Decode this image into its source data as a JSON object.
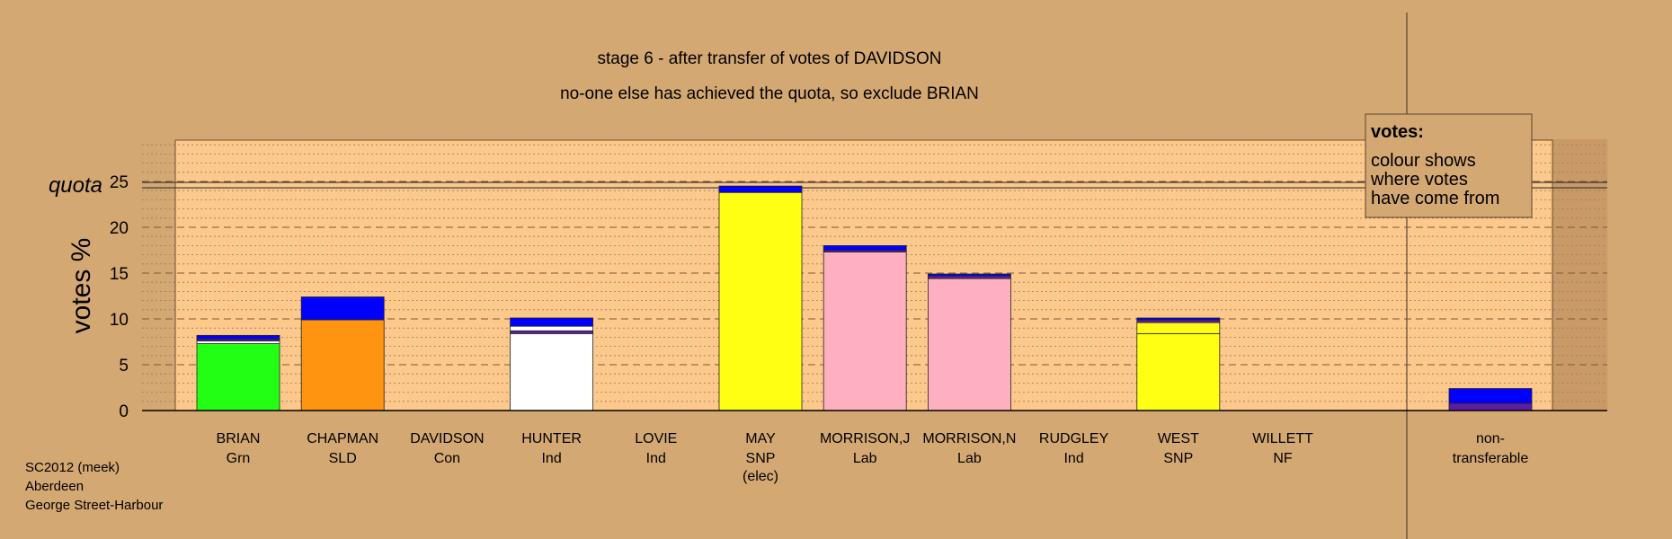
{
  "chart_data": {
    "type": "bar",
    "title": "stage 6 - after transfer of votes of DAVIDSON",
    "subtitle": "no-one else has achieved the quota, so exclude BRIAN",
    "ylabel": "votes %",
    "ylim": [
      0,
      30
    ],
    "yticks": [
      0,
      5,
      10,
      15,
      20,
      25
    ],
    "quota": {
      "label": "quota",
      "value": 24.6
    },
    "legend": {
      "title": "votes:",
      "lines": [
        "colour shows",
        "where votes",
        "have come from"
      ],
      "placement": "top-right"
    },
    "colors": {
      "background": "#d4a872",
      "plot_area": "#fcc88c",
      "transfer": "#0000ff",
      "transfer_dark": "#5b1ea0"
    },
    "candidates": [
      {
        "name": "BRIAN",
        "party": "Grn",
        "note": "",
        "color": "#22ff14",
        "segments": [
          {
            "value": 7.3,
            "color": "#22ff14"
          },
          {
            "value": 0.3,
            "color": "#ffffff"
          },
          {
            "value": 0.2,
            "color": "#5b1ea0"
          },
          {
            "value": 0.4,
            "color": "#0000ff"
          }
        ]
      },
      {
        "name": "CHAPMAN",
        "party": "SLD",
        "note": "",
        "color": "#ff9410",
        "segments": [
          {
            "value": 9.9,
            "color": "#ff9410"
          },
          {
            "value": 2.5,
            "color": "#0000ff"
          }
        ]
      },
      {
        "name": "DAVIDSON",
        "party": "Con",
        "note": "",
        "color": "#0000ff",
        "segments": []
      },
      {
        "name": "HUNTER",
        "party": "Ind",
        "note": "",
        "color": "#ffffff",
        "segments": [
          {
            "value": 8.4,
            "color": "#ffffff"
          },
          {
            "value": 0.3,
            "color": "#5b1ea0"
          },
          {
            "value": 0.5,
            "color": "#ffffff"
          },
          {
            "value": 0.9,
            "color": "#0000ff"
          }
        ]
      },
      {
        "name": "LOVIE",
        "party": "Ind",
        "note": "",
        "color": "#5b1ea0",
        "segments": []
      },
      {
        "name": "MAY",
        "party": "SNP",
        "note": "(elec)",
        "color": "#ffff14",
        "segments": [
          {
            "value": 23.8,
            "color": "#ffff14"
          },
          {
            "value": 0.7,
            "color": "#0000ff"
          }
        ]
      },
      {
        "name": "MORRISON,J",
        "party": "Lab",
        "note": "",
        "color": "#ffb0c0",
        "segments": [
          {
            "value": 17.3,
            "color": "#ffb0c0"
          },
          {
            "value": 0.2,
            "color": "#5b1ea0"
          },
          {
            "value": 0.5,
            "color": "#0000ff"
          }
        ]
      },
      {
        "name": "MORRISON,N",
        "party": "Lab",
        "note": "",
        "color": "#ffb0c0",
        "segments": [
          {
            "value": 14.4,
            "color": "#ffb0c0"
          },
          {
            "value": 0.3,
            "color": "#5b1ea0"
          },
          {
            "value": 0.2,
            "color": "#0000ff"
          }
        ]
      },
      {
        "name": "RUDGLEY",
        "party": "Ind",
        "note": "",
        "color": "#5b1ea0",
        "segments": []
      },
      {
        "name": "WEST",
        "party": "SNP",
        "note": "",
        "color": "#ffff14",
        "segments": [
          {
            "value": 8.4,
            "color": "#ffff14"
          },
          {
            "value": 1.2,
            "color": "#ffff14"
          },
          {
            "value": 0.3,
            "color": "#5b1ea0"
          },
          {
            "value": 0.2,
            "color": "#0000ff"
          }
        ]
      },
      {
        "name": "WILLETT",
        "party": "NF",
        "note": "",
        "color": "#5b1ea0",
        "segments": []
      }
    ],
    "non_transferable": {
      "label_line1": "non-",
      "label_line2": "transferable",
      "segments": [
        {
          "value": 0.8,
          "color": "#5b1ea0"
        },
        {
          "value": 1.6,
          "color": "#0000ff"
        }
      ]
    }
  },
  "footer": {
    "line1": "SC2012 (meek)",
    "line2": "Aberdeen",
    "line3": "George Street-Harbour"
  }
}
